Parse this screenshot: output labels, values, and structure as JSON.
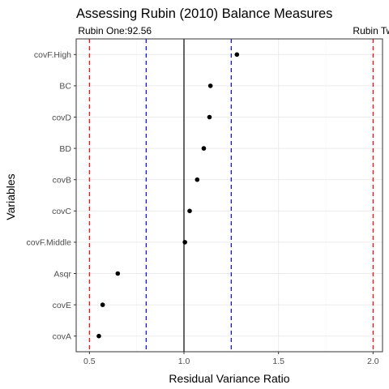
{
  "chart_data": {
    "type": "scatter",
    "title": "Assessing Rubin (2010) Balance Measures",
    "xlabel": "Residual Variance Ratio",
    "ylabel": "Variables",
    "xlim": [
      0.43,
      2.05
    ],
    "x_ticks": [
      0.5,
      1.0,
      1.5,
      2.0
    ],
    "x_tick_labels": [
      "0.5",
      "1.0",
      "1.5",
      "2.0"
    ],
    "categories": [
      "covA",
      "covE",
      "Asqr",
      "covF.Middle",
      "covC",
      "covB",
      "BD",
      "covD",
      "BC",
      "covF.High"
    ],
    "values": [
      0.55,
      0.57,
      0.65,
      1.005,
      1.03,
      1.07,
      1.105,
      1.135,
      1.14,
      1.28
    ],
    "vlines": [
      {
        "x": 0.5,
        "color": "#ff0000",
        "style": "dashed"
      },
      {
        "x": 2.0,
        "color": "#ff0000",
        "style": "dashed"
      },
      {
        "x": 0.8,
        "color": "#0000ff",
        "style": "dashed"
      },
      {
        "x": 1.25,
        "color": "#0000ff",
        "style": "dashed"
      },
      {
        "x": 1.0,
        "color": "#000000",
        "style": "solid"
      }
    ],
    "annotations": [
      {
        "text": "Rubin One:92.56",
        "x": 0.5,
        "anchor": "start"
      },
      {
        "text": "Rubin Tw",
        "x": 2.0,
        "anchor": "middle"
      }
    ],
    "grid": true,
    "point_color": "#000000"
  }
}
